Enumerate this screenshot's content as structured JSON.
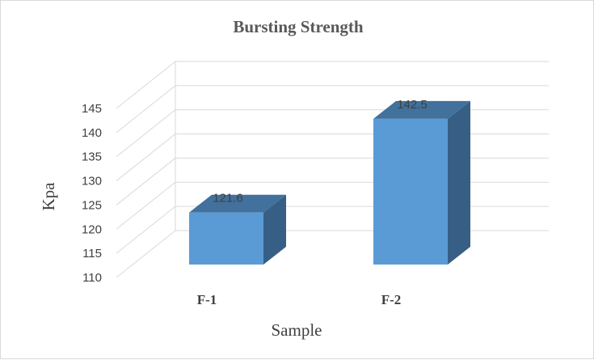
{
  "chart_data": {
    "type": "bar",
    "title": "Bursting Strength",
    "xlabel": "Sample",
    "ylabel": "Kpa",
    "categories": [
      "F-1",
      "F-2"
    ],
    "values": [
      121.6,
      142.5
    ],
    "data_labels": [
      "121.6",
      "142.5"
    ],
    "ylim": [
      110,
      145
    ],
    "yticks": [
      "110",
      "115",
      "120",
      "125",
      "130",
      "135",
      "140",
      "145"
    ],
    "grid": true,
    "legend": "none",
    "colors": {
      "front": "#5b9bd5",
      "top": "#41719c",
      "side": "#375f85",
      "grid": "#d9d9d9"
    }
  }
}
